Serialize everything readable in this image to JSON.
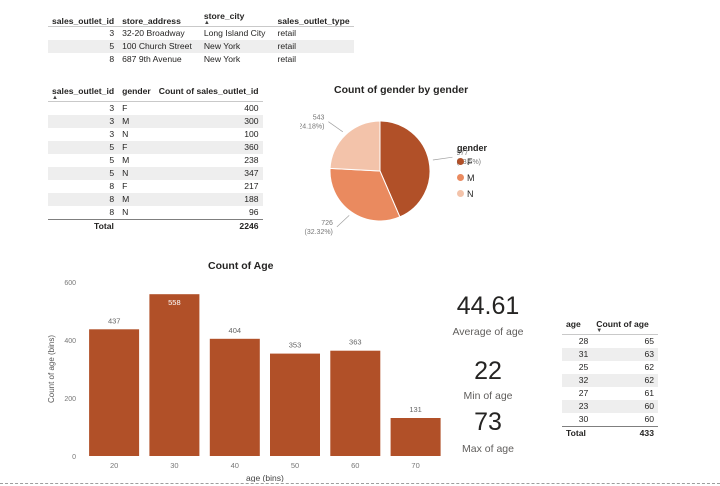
{
  "stores_table": {
    "headers": [
      "sales_outlet_id",
      "store_address",
      "store_city",
      "sales_outlet_type"
    ],
    "rows": [
      [
        "3",
        "32-20 Broadway",
        "Long Island City",
        "retail"
      ],
      [
        "5",
        "100 Church Street",
        "New York",
        "retail"
      ],
      [
        "8",
        "687 9th Avenue",
        "New York",
        "retail"
      ]
    ]
  },
  "gender_table": {
    "headers": [
      "sales_outlet_id",
      "gender",
      "Count of sales_outlet_id"
    ],
    "rows": [
      [
        "3",
        "F",
        "400"
      ],
      [
        "3",
        "M",
        "300"
      ],
      [
        "3",
        "N",
        "100"
      ],
      [
        "5",
        "F",
        "360"
      ],
      [
        "5",
        "M",
        "238"
      ],
      [
        "5",
        "N",
        "347"
      ],
      [
        "8",
        "F",
        "217"
      ],
      [
        "8",
        "M",
        "188"
      ],
      [
        "8",
        "N",
        "96"
      ]
    ],
    "total_label": "Total",
    "total_value": "2246"
  },
  "age_table": {
    "headers": [
      "age",
      "Count of age"
    ],
    "rows": [
      [
        "28",
        "65"
      ],
      [
        "31",
        "63"
      ],
      [
        "25",
        "62"
      ],
      [
        "32",
        "62"
      ],
      [
        "27",
        "61"
      ],
      [
        "23",
        "60"
      ],
      [
        "30",
        "60"
      ]
    ],
    "total_label": "Total",
    "total_value": "433"
  },
  "cards": [
    {
      "value": "44.61",
      "label": "Average of age"
    },
    {
      "value": "22",
      "label": "Min of age"
    },
    {
      "value": "73",
      "label": "Max of age"
    }
  ],
  "colors": {
    "bar": "#b15028",
    "pie_f": "#b15028",
    "pie_m": "#ea8a5f",
    "pie_n": "#f3c3aa",
    "row_shade": "#eeeeee"
  },
  "chart_data": [
    {
      "type": "pie",
      "title": "Count of gender by gender",
      "legend_title": "gender",
      "legend_position": "right",
      "slices": [
        {
          "label": "F",
          "value": 977,
          "value_label": "977",
          "pct_label": "(43.5%)"
        },
        {
          "label": "M",
          "value": 726,
          "value_label": "726",
          "pct_label": "(32.32%)"
        },
        {
          "label": "N",
          "value": 543,
          "value_label": "543",
          "pct_label": "(24.18%)"
        }
      ]
    },
    {
      "type": "bar",
      "title": "Count of Age",
      "xlabel": "age (bins)",
      "ylabel": "Count of age (bins)",
      "categories": [
        "20",
        "30",
        "40",
        "50",
        "60",
        "70"
      ],
      "values": [
        437,
        558,
        404,
        353,
        363,
        131
      ],
      "yticks": [
        "0",
        "200",
        "400",
        "600"
      ],
      "ylim": [
        0,
        600
      ],
      "grid": false
    }
  ]
}
